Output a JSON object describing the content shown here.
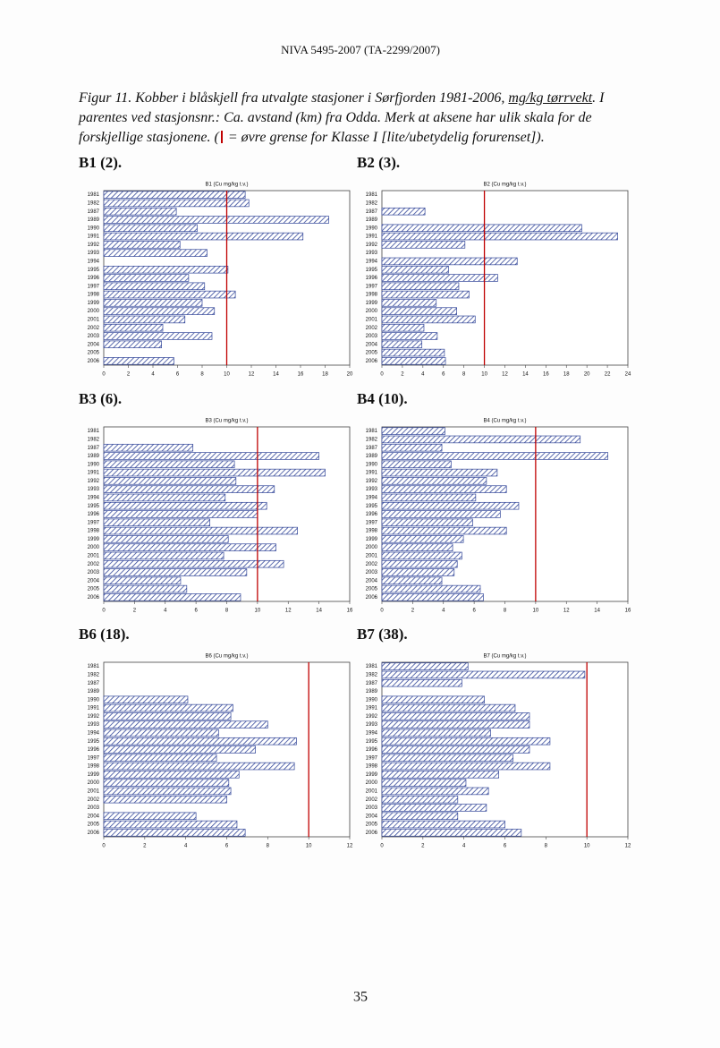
{
  "header": "NIVA 5495-2007 (TA-2299/2007)",
  "caption": {
    "line1": "Figur 11. Kobber i blåskjell fra utvalgte stasjoner i Sørfjorden 1981-2006, ",
    "unit": "mg/kg tørrvekt",
    "line1_end": ". I",
    "line2": "parentes ved stasjonsnr.: Ca. avstand (km) fra Odda. Merk at aksene har ulik skala for de",
    "line3_start": "forskjellige stasjonene. (",
    "line3_end": " = øvre grense for Klasse I [lite/ubetydelig forurenset])."
  },
  "page_number": "35",
  "chart_data": [
    {
      "type": "bar",
      "orientation": "horizontal",
      "panel_label": "B1 (2).",
      "title": "B1 (Cu mg/kg t.v.)",
      "categories": [
        "1981",
        "1982",
        "1987",
        "1989",
        "1990",
        "1991",
        "1992",
        "1993",
        "1994",
        "1995",
        "1996",
        "1997",
        "1998",
        "1999",
        "2000",
        "2001",
        "2002",
        "2003",
        "2004",
        "2005",
        "2006"
      ],
      "values": [
        11.5,
        11.8,
        5.9,
        18.3,
        7.6,
        16.2,
        6.2,
        8.4,
        null,
        10.1,
        6.9,
        8.2,
        10.7,
        8.0,
        9.0,
        6.6,
        4.8,
        8.8,
        4.7,
        null,
        5.7
      ],
      "xlim": [
        0,
        20
      ],
      "xticks": [
        0,
        2,
        4,
        6,
        8,
        10,
        12,
        14,
        16,
        18,
        20
      ],
      "color": "#34489a",
      "reference_line": 10,
      "reference_color": "#c00000"
    },
    {
      "type": "bar",
      "orientation": "horizontal",
      "panel_label": "B2 (3).",
      "title": "B2 (Cu mg/kg t.v.)",
      "categories": [
        "1981",
        "1982",
        "1987",
        "1989",
        "1990",
        "1991",
        "1992",
        "1993",
        "1994",
        "1995",
        "1996",
        "1997",
        "1998",
        "1999",
        "2000",
        "2001",
        "2002",
        "2003",
        "2004",
        "2005",
        "2006"
      ],
      "values": [
        null,
        null,
        4.2,
        null,
        19.5,
        23.0,
        8.1,
        null,
        13.2,
        6.5,
        11.3,
        7.5,
        8.5,
        5.3,
        7.3,
        9.1,
        4.1,
        5.4,
        3.9,
        6.1,
        6.2
      ],
      "xlim": [
        0,
        24
      ],
      "xticks": [
        0,
        2,
        4,
        6,
        8,
        10,
        12,
        14,
        16,
        18,
        20,
        22,
        24
      ],
      "color": "#34489a",
      "reference_line": 10,
      "reference_color": "#c00000"
    },
    {
      "type": "bar",
      "orientation": "horizontal",
      "panel_label": "B3 (6).",
      "title": "B3 (Cu mg/kg t.v.)",
      "categories": [
        "1981",
        "1982",
        "1987",
        "1989",
        "1990",
        "1991",
        "1992",
        "1993",
        "1994",
        "1995",
        "1996",
        "1997",
        "1998",
        "1999",
        "2000",
        "2001",
        "2002",
        "2003",
        "2004",
        "2005",
        "2006"
      ],
      "values": [
        null,
        null,
        5.8,
        14.0,
        8.5,
        14.4,
        8.6,
        11.1,
        7.9,
        10.6,
        10.0,
        6.9,
        12.6,
        8.1,
        11.2,
        7.8,
        11.7,
        9.3,
        5.0,
        5.4,
        8.9
      ],
      "xlim": [
        0,
        16
      ],
      "xticks": [
        0,
        2,
        4,
        6,
        8,
        10,
        12,
        14,
        16
      ],
      "color": "#34489a",
      "reference_line": 10,
      "reference_color": "#c00000"
    },
    {
      "type": "bar",
      "orientation": "horizontal",
      "panel_label": "B4 (10).",
      "title": "B4 (Cu mg/kg t.v.)",
      "categories": [
        "1981",
        "1982",
        "1987",
        "1989",
        "1990",
        "1991",
        "1992",
        "1993",
        "1994",
        "1995",
        "1996",
        "1997",
        "1998",
        "1999",
        "2000",
        "2001",
        "2002",
        "2003",
        "2004",
        "2005",
        "2006"
      ],
      "values": [
        4.1,
        12.9,
        3.9,
        14.7,
        4.5,
        7.5,
        6.8,
        8.1,
        6.1,
        8.9,
        7.7,
        5.9,
        8.1,
        5.3,
        4.6,
        5.2,
        4.9,
        4.7,
        3.9,
        6.4,
        6.6
      ],
      "xlim": [
        0,
        16
      ],
      "xticks": [
        0,
        2,
        4,
        6,
        8,
        10,
        12,
        14,
        16
      ],
      "color": "#34489a",
      "reference_line": 10,
      "reference_color": "#c00000"
    },
    {
      "type": "bar",
      "orientation": "horizontal",
      "panel_label": "B6 (18).",
      "title": "B6 (Cu mg/kg t.v.)",
      "categories": [
        "1981",
        "1982",
        "1987",
        "1989",
        "1990",
        "1991",
        "1992",
        "1993",
        "1994",
        "1995",
        "1996",
        "1997",
        "1998",
        "1999",
        "2000",
        "2001",
        "2002",
        "2003",
        "2004",
        "2005",
        "2006"
      ],
      "values": [
        null,
        null,
        null,
        null,
        4.1,
        6.3,
        6.2,
        8.0,
        5.6,
        9.4,
        7.4,
        5.5,
        9.3,
        6.6,
        6.1,
        6.2,
        6.0,
        null,
        4.5,
        6.5,
        6.9
      ],
      "xlim": [
        0,
        12
      ],
      "xticks": [
        0,
        2,
        4,
        6,
        8,
        10,
        12
      ],
      "color": "#34489a",
      "reference_line": 10,
      "reference_color": "#c00000"
    },
    {
      "type": "bar",
      "orientation": "horizontal",
      "panel_label": "B7 (38).",
      "title": "B7 (Cu mg/kg t.v.)",
      "categories": [
        "1981",
        "1982",
        "1987",
        "1989",
        "1990",
        "1991",
        "1992",
        "1993",
        "1994",
        "1995",
        "1996",
        "1997",
        "1998",
        "1999",
        "2000",
        "2001",
        "2002",
        "2003",
        "2004",
        "2005",
        "2006"
      ],
      "values": [
        4.2,
        9.9,
        3.9,
        null,
        5.0,
        6.5,
        7.2,
        7.2,
        5.3,
        8.2,
        7.2,
        6.4,
        8.2,
        5.7,
        4.1,
        5.2,
        3.7,
        5.1,
        3.7,
        6.0,
        6.8
      ],
      "xlim": [
        0,
        12
      ],
      "xticks": [
        0,
        2,
        4,
        6,
        8,
        10,
        12
      ],
      "color": "#34489a",
      "reference_line": 10,
      "reference_color": "#c00000"
    }
  ]
}
